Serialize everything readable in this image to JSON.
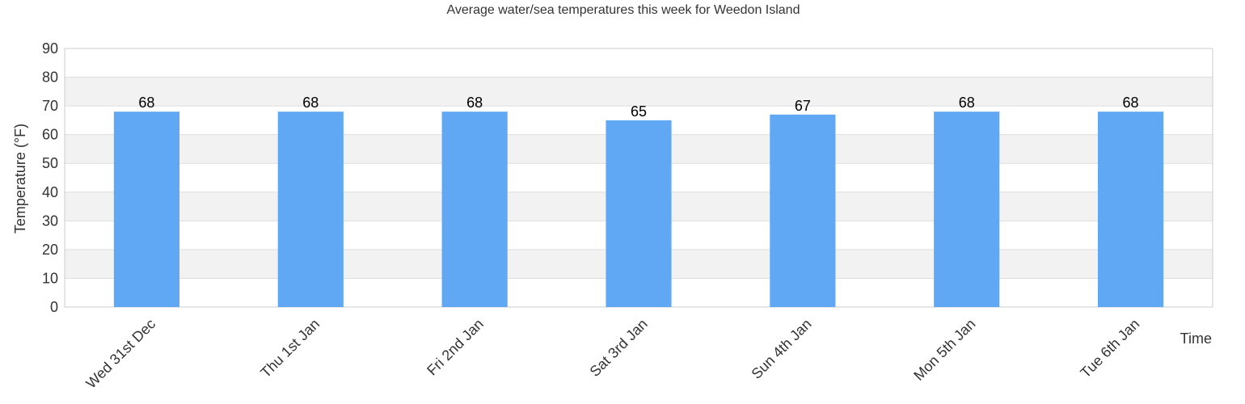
{
  "chart_data": {
    "type": "bar",
    "title": "Average water/sea temperatures this week for Weedon Island",
    "xlabel": "Time",
    "ylabel": "Temperature (°F)",
    "ylim": [
      0,
      90
    ],
    "yticks": [
      0,
      10,
      20,
      30,
      40,
      50,
      60,
      70,
      80,
      90
    ],
    "categories": [
      "Wed 31st Dec",
      "Thu 1st Jan",
      "Fri 2nd Jan",
      "Sat 3rd Jan",
      "Sun 4th Jan",
      "Mon 5th Jan",
      "Tue 6th Jan"
    ],
    "values": [
      68,
      68,
      68,
      65,
      67,
      68,
      68
    ],
    "data_labels": [
      "68",
      "68",
      "68",
      "65",
      "67",
      "68",
      "68"
    ],
    "grid": true,
    "legend": "none",
    "colors": {
      "bar": "#60a7f4",
      "band_alt": "#f2f2f2",
      "gridline": "#dddddd",
      "axis": "#cccccc"
    }
  }
}
